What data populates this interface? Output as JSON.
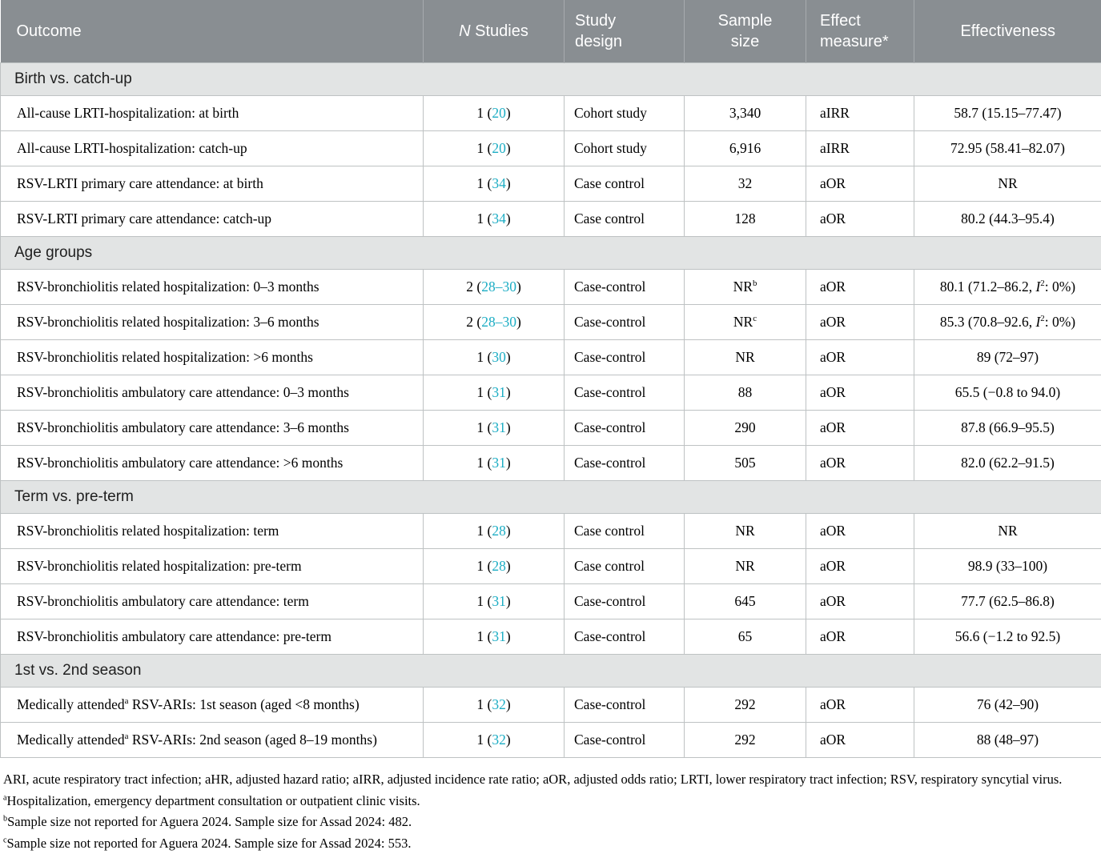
{
  "colors": {
    "header_bg": "#898E92",
    "header_divider": "#A7ABAE",
    "section_bg": "#E2E4E4",
    "grid": "#BEC2C3",
    "citation": "#1CADC4"
  },
  "table": {
    "columns": [
      {
        "key": "outcome",
        "label": "Outcome"
      },
      {
        "key": "n-studies",
        "label": "N Studies",
        "italic_n": true
      },
      {
        "key": "study-design",
        "label": "Study\ndesign"
      },
      {
        "key": "sample-size",
        "label": "Sample\nsize"
      },
      {
        "key": "effect-measure",
        "label": "Effect\nmeasure*"
      },
      {
        "key": "effectiveness",
        "label": "Effectiveness"
      }
    ],
    "sections": [
      {
        "title": "Birth vs. catch-up",
        "rows": [
          {
            "outcome": "All-cause LRTI-hospitalization: at birth",
            "n_count": "1",
            "n_cite": "20",
            "design": "Cohort study",
            "sample": "3,340",
            "effect": "aIRR",
            "effectiveness": "58.7 (15.15–77.47)"
          },
          {
            "outcome": "All-cause LRTI-hospitalization: catch-up",
            "n_count": "1",
            "n_cite": "20",
            "design": "Cohort study",
            "sample": "6,916",
            "effect": "aIRR",
            "effectiveness": "72.95 (58.41–82.07)"
          },
          {
            "outcome": "RSV-LRTI primary care attendance: at birth",
            "n_count": "1",
            "n_cite": "34",
            "design": "Case control",
            "sample": "32",
            "effect": "aOR",
            "effectiveness": "NR"
          },
          {
            "outcome": "RSV-LRTI primary care attendance: catch-up",
            "n_count": "1",
            "n_cite": "34",
            "design": "Case control",
            "sample": "128",
            "effect": "aOR",
            "effectiveness": "80.2 (44.3–95.4)"
          }
        ]
      },
      {
        "title": "Age groups",
        "rows": [
          {
            "outcome": "RSV-bronchiolitis related hospitalization: 0–3 months",
            "n_count": "2",
            "n_cite": "28–30",
            "design": "Case-control",
            "sample": "NR^b",
            "effect": "aOR",
            "effectiveness": "80.1 (71.2–86.2, I^2: 0%)"
          },
          {
            "outcome": "RSV-bronchiolitis related hospitalization: 3–6 months",
            "n_count": "2",
            "n_cite": "28–30",
            "design": "Case-control",
            "sample": "NR^c",
            "effect": "aOR",
            "effectiveness": "85.3 (70.8–92.6, I^2: 0%)"
          },
          {
            "outcome": "RSV-bronchiolitis related hospitalization: >6 months",
            "n_count": "1",
            "n_cite": "30",
            "design": "Case-control",
            "sample": "NR",
            "effect": "aOR",
            "effectiveness": "89 (72–97)"
          },
          {
            "outcome": "RSV-bronchiolitis ambulatory care attendance: 0–3 months",
            "n_count": "1",
            "n_cite": "31",
            "design": "Case-control",
            "sample": "88",
            "effect": "aOR",
            "effectiveness": "65.5 (−0.8 to 94.0)"
          },
          {
            "outcome": "RSV-bronchiolitis ambulatory care attendance: 3–6 months",
            "n_count": "1",
            "n_cite": "31",
            "design": "Case-control",
            "sample": "290",
            "effect": "aOR",
            "effectiveness": "87.8 (66.9–95.5)"
          },
          {
            "outcome": "RSV-bronchiolitis ambulatory care attendance: >6 months",
            "n_count": "1",
            "n_cite": "31",
            "design": "Case-control",
            "sample": "505",
            "effect": "aOR",
            "effectiveness": "82.0 (62.2–91.5)"
          }
        ]
      },
      {
        "title": "Term vs. pre-term",
        "rows": [
          {
            "outcome": "RSV-bronchiolitis related hospitalization: term",
            "n_count": "1",
            "n_cite": "28",
            "design": "Case control",
            "sample": "NR",
            "effect": "aOR",
            "effectiveness": "NR"
          },
          {
            "outcome": "RSV-bronchiolitis related hospitalization: pre-term",
            "n_count": "1",
            "n_cite": "28",
            "design": "Case control",
            "sample": "NR",
            "effect": "aOR",
            "effectiveness": "98.9 (33–100)"
          },
          {
            "outcome": "RSV-bronchiolitis ambulatory care attendance: term",
            "n_count": "1",
            "n_cite": "31",
            "design": "Case-control",
            "sample": "645",
            "effect": "aOR",
            "effectiveness": "77.7 (62.5–86.8)"
          },
          {
            "outcome": "RSV-bronchiolitis ambulatory care attendance: pre-term",
            "n_count": "1",
            "n_cite": "31",
            "design": "Case-control",
            "sample": "65",
            "effect": "aOR",
            "effectiveness": "56.6 (−1.2 to 92.5)"
          }
        ]
      },
      {
        "title": "1st vs. 2nd season",
        "rows": [
          {
            "outcome": "Medically attended^a RSV-ARIs: 1st season (aged <8 months)",
            "n_count": "1",
            "n_cite": "32",
            "design": "Case-control",
            "sample": "292",
            "effect": "aOR",
            "effectiveness": "76 (42–90)"
          },
          {
            "outcome": "Medically attended^a RSV-ARIs: 2nd season (aged 8–19 months)",
            "n_count": "1",
            "n_cite": "32",
            "design": "Case-control",
            "sample": "292",
            "effect": "aOR",
            "effectiveness": "88 (48–97)"
          }
        ]
      }
    ]
  },
  "footnotes": [
    {
      "sup": "",
      "text": "ARI, acute respiratory tract infection; aHR, adjusted hazard ratio; aIRR, adjusted incidence rate ratio; aOR, adjusted odds ratio; LRTI, lower respiratory tract infection; RSV, respiratory syncytial virus."
    },
    {
      "sup": "a",
      "text": "Hospitalization, emergency department consultation or outpatient clinic visits."
    },
    {
      "sup": "b",
      "text": "Sample size not reported for Aguera 2024. Sample size for Assad 2024: 482."
    },
    {
      "sup": "c",
      "text": "Sample size not reported for Aguera 2024. Sample size for Assad 2024: 553."
    }
  ]
}
